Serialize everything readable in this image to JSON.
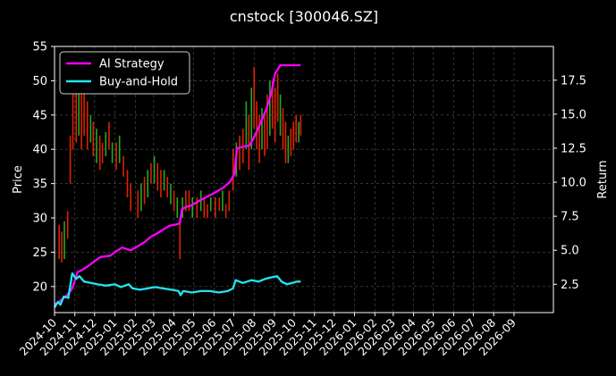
{
  "chart_data": {
    "type": "line",
    "title": "cnstock [300046.SZ]",
    "ylabel_left": "Price",
    "ylabel_right": "Return",
    "xlabel": "",
    "ylim_left": [
      16.2,
      55
    ],
    "ylim_right": [
      0.42,
      19.98
    ],
    "xlim": [
      "2024-10-01",
      "2026-10-31"
    ],
    "grid": true,
    "legend_position": "upper-left",
    "x_ticks": [
      "2024-10",
      "2024-11",
      "2024-12",
      "2025-01",
      "2025-02",
      "2025-03",
      "2025-04",
      "2025-05",
      "2025-06",
      "2025-07",
      "2025-08",
      "2025-09",
      "2025-10",
      "2025-11",
      "2025-12",
      "2026-01",
      "2026-02",
      "2026-03",
      "2026-04",
      "2026-05",
      "2026-06",
      "2026-07",
      "2026-08",
      "2026-09"
    ],
    "y_ticks_left": [
      20,
      25,
      30,
      35,
      40,
      45,
      50,
      55
    ],
    "y_ticks_right": [
      "2.5",
      "5.0",
      "7.5",
      "10.0",
      "12.5",
      "15.0",
      "17.5"
    ],
    "colors": {
      "up_candle": "#22aa22",
      "down_candle": "#dd2200",
      "ai_strategy": "#ff00ff",
      "buy_hold": "#22e5f0",
      "grid": "#555555",
      "background": "#000000"
    },
    "candles": [
      {
        "date": "2024-10-08",
        "low": 24,
        "high": 29,
        "dir": "down"
      },
      {
        "date": "2024-10-12",
        "low": 23.5,
        "high": 28,
        "dir": "down"
      },
      {
        "date": "2024-10-16",
        "low": 24,
        "high": 29.5,
        "dir": "up"
      },
      {
        "date": "2024-10-21",
        "low": 27,
        "high": 31,
        "dir": "down"
      },
      {
        "date": "2024-10-25",
        "low": 35,
        "high": 42,
        "dir": "down"
      },
      {
        "date": "2024-10-29",
        "low": 40,
        "high": 50,
        "dir": "down"
      },
      {
        "date": "2024-11-03",
        "low": 41,
        "high": 51,
        "dir": "down"
      },
      {
        "date": "2024-11-07",
        "low": 42,
        "high": 50,
        "dir": "up"
      },
      {
        "date": "2024-11-11",
        "low": 40,
        "high": 48,
        "dir": "down"
      },
      {
        "date": "2024-11-15",
        "low": 42,
        "high": 49,
        "dir": "down"
      },
      {
        "date": "2024-11-20",
        "low": 40,
        "high": 47,
        "dir": "down"
      },
      {
        "date": "2024-11-25",
        "low": 41,
        "high": 45,
        "dir": "up"
      },
      {
        "date": "2024-11-29",
        "low": 39,
        "high": 44,
        "dir": "down"
      },
      {
        "date": "2024-12-04",
        "low": 38,
        "high": 43,
        "dir": "up"
      },
      {
        "date": "2024-12-09",
        "low": 37,
        "high": 42,
        "dir": "down"
      },
      {
        "date": "2024-12-13",
        "low": 38,
        "high": 41,
        "dir": "down"
      },
      {
        "date": "2024-12-18",
        "low": 39,
        "high": 42.5,
        "dir": "up"
      },
      {
        "date": "2024-12-23",
        "low": 40,
        "high": 44,
        "dir": "down"
      },
      {
        "date": "2024-12-28",
        "low": 38,
        "high": 41,
        "dir": "up"
      },
      {
        "date": "2025-01-03",
        "low": 37,
        "high": 41,
        "dir": "down"
      },
      {
        "date": "2025-01-08",
        "low": 38,
        "high": 42,
        "dir": "up"
      },
      {
        "date": "2025-01-14",
        "low": 36,
        "high": 39,
        "dir": "down"
      },
      {
        "date": "2025-01-20",
        "low": 33,
        "high": 37,
        "dir": "down"
      },
      {
        "date": "2025-01-25",
        "low": 31,
        "high": 35,
        "dir": "down"
      },
      {
        "date": "2025-02-05",
        "low": 30,
        "high": 34,
        "dir": "down"
      },
      {
        "date": "2025-02-10",
        "low": 31,
        "high": 35,
        "dir": "up"
      },
      {
        "date": "2025-02-15",
        "low": 32,
        "high": 36,
        "dir": "down"
      },
      {
        "date": "2025-02-20",
        "low": 33,
        "high": 37,
        "dir": "up"
      },
      {
        "date": "2025-02-25",
        "low": 35,
        "high": 38,
        "dir": "down"
      },
      {
        "date": "2025-03-02",
        "low": 35,
        "high": 39,
        "dir": "up"
      },
      {
        "date": "2025-03-07",
        "low": 34,
        "high": 38,
        "dir": "down"
      },
      {
        "date": "2025-03-12",
        "low": 33,
        "high": 37,
        "dir": "down"
      },
      {
        "date": "2025-03-17",
        "low": 34,
        "high": 37,
        "dir": "up"
      },
      {
        "date": "2025-03-22",
        "low": 33,
        "high": 36,
        "dir": "down"
      },
      {
        "date": "2025-03-27",
        "low": 32,
        "high": 35,
        "dir": "up"
      },
      {
        "date": "2025-04-01",
        "low": 31,
        "high": 34,
        "dir": "down"
      },
      {
        "date": "2025-04-06",
        "low": 30,
        "high": 33,
        "dir": "up"
      },
      {
        "date": "2025-04-10",
        "low": 24,
        "high": 30,
        "dir": "down"
      },
      {
        "date": "2025-04-14",
        "low": 30,
        "high": 33,
        "dir": "up"
      },
      {
        "date": "2025-04-19",
        "low": 31,
        "high": 34,
        "dir": "down"
      },
      {
        "date": "2025-04-24",
        "low": 31,
        "high": 34,
        "dir": "down"
      },
      {
        "date": "2025-04-29",
        "low": 30,
        "high": 33,
        "dir": "up"
      },
      {
        "date": "2025-05-06",
        "low": 30,
        "high": 33,
        "dir": "down"
      },
      {
        "date": "2025-05-12",
        "low": 31,
        "high": 34,
        "dir": "up"
      },
      {
        "date": "2025-05-17",
        "low": 30,
        "high": 33,
        "dir": "down"
      },
      {
        "date": "2025-05-22",
        "low": 30,
        "high": 32,
        "dir": "down"
      },
      {
        "date": "2025-05-27",
        "low": 31,
        "high": 33,
        "dir": "up"
      },
      {
        "date": "2025-06-03",
        "low": 30,
        "high": 33,
        "dir": "down"
      },
      {
        "date": "2025-06-09",
        "low": 31,
        "high": 33,
        "dir": "down"
      },
      {
        "date": "2025-06-14",
        "low": 31,
        "high": 34,
        "dir": "up"
      },
      {
        "date": "2025-06-19",
        "low": 30,
        "high": 32,
        "dir": "down"
      },
      {
        "date": "2025-06-24",
        "low": 31,
        "high": 34,
        "dir": "down"
      },
      {
        "date": "2025-06-30",
        "low": 34,
        "high": 40,
        "dir": "down"
      },
      {
        "date": "2025-07-05",
        "low": 36,
        "high": 41,
        "dir": "up"
      },
      {
        "date": "2025-07-10",
        "low": 37,
        "high": 42,
        "dir": "down"
      },
      {
        "date": "2025-07-15",
        "low": 38,
        "high": 43,
        "dir": "down"
      },
      {
        "date": "2025-07-20",
        "low": 40,
        "high": 47,
        "dir": "up"
      },
      {
        "date": "2025-07-24",
        "low": 37,
        "high": 45,
        "dir": "down"
      },
      {
        "date": "2025-07-28",
        "low": 40,
        "high": 49,
        "dir": "up"
      },
      {
        "date": "2025-08-01",
        "low": 43,
        "high": 52,
        "dir": "down"
      },
      {
        "date": "2025-08-05",
        "low": 40,
        "high": 47,
        "dir": "down"
      },
      {
        "date": "2025-08-09",
        "low": 38,
        "high": 45,
        "dir": "down"
      },
      {
        "date": "2025-08-13",
        "low": 40,
        "high": 46,
        "dir": "up"
      },
      {
        "date": "2025-08-17",
        "low": 39,
        "high": 45,
        "dir": "down"
      },
      {
        "date": "2025-08-21",
        "low": 40,
        "high": 48,
        "dir": "down"
      },
      {
        "date": "2025-08-25",
        "low": 42,
        "high": 50,
        "dir": "up"
      },
      {
        "date": "2025-08-29",
        "low": 43,
        "high": 50,
        "dir": "down"
      },
      {
        "date": "2025-09-02",
        "low": 41,
        "high": 49,
        "dir": "down"
      },
      {
        "date": "2025-09-06",
        "low": 44,
        "high": 51,
        "dir": "down"
      },
      {
        "date": "2025-09-10",
        "low": 42,
        "high": 48,
        "dir": "up"
      },
      {
        "date": "2025-09-14",
        "low": 40,
        "high": 46,
        "dir": "down"
      },
      {
        "date": "2025-09-18",
        "low": 38,
        "high": 44,
        "dir": "down"
      },
      {
        "date": "2025-09-22",
        "low": 38,
        "high": 42,
        "dir": "up"
      },
      {
        "date": "2025-09-26",
        "low": 39,
        "high": 43,
        "dir": "down"
      },
      {
        "date": "2025-09-30",
        "low": 40,
        "high": 44,
        "dir": "down"
      },
      {
        "date": "2025-10-04",
        "low": 41,
        "high": 45,
        "dir": "down"
      },
      {
        "date": "2025-10-08",
        "low": 41,
        "high": 44,
        "dir": "up"
      },
      {
        "date": "2025-10-11",
        "low": 42,
        "high": 45,
        "dir": "down"
      }
    ],
    "series": [
      {
        "name": "AI Strategy",
        "color": "#ff00ff",
        "points": [
          [
            "2024-10-01",
            1.0
          ],
          [
            "2024-10-10",
            1.3
          ],
          [
            "2024-10-20",
            1.7
          ],
          [
            "2024-10-28",
            2.2
          ],
          [
            "2024-11-05",
            3.4
          ],
          [
            "2024-11-10",
            3.5
          ],
          [
            "2024-11-20",
            3.8
          ],
          [
            "2024-12-01",
            4.2
          ],
          [
            "2024-12-10",
            4.5
          ],
          [
            "2024-12-25",
            4.6
          ],
          [
            "2025-01-02",
            4.9
          ],
          [
            "2025-01-12",
            5.2
          ],
          [
            "2025-01-25",
            5.0
          ],
          [
            "2025-02-05",
            5.3
          ],
          [
            "2025-02-15",
            5.6
          ],
          [
            "2025-02-25",
            6.0
          ],
          [
            "2025-03-05",
            6.2
          ],
          [
            "2025-03-15",
            6.5
          ],
          [
            "2025-03-25",
            6.8
          ],
          [
            "2025-04-05",
            6.9
          ],
          [
            "2025-04-10",
            7.0
          ],
          [
            "2025-04-13",
            8.0
          ],
          [
            "2025-04-20",
            8.2
          ],
          [
            "2025-04-28",
            8.3
          ],
          [
            "2025-05-08",
            8.6
          ],
          [
            "2025-05-20",
            8.9
          ],
          [
            "2025-06-01",
            9.2
          ],
          [
            "2025-06-15",
            9.6
          ],
          [
            "2025-06-25",
            10.0
          ],
          [
            "2025-07-02",
            10.6
          ],
          [
            "2025-07-06",
            12.5
          ],
          [
            "2025-07-15",
            12.6
          ],
          [
            "2025-07-25",
            12.7
          ],
          [
            "2025-08-03",
            13.5
          ],
          [
            "2025-08-12",
            14.5
          ],
          [
            "2025-08-20",
            15.4
          ],
          [
            "2025-08-27",
            16.5
          ],
          [
            "2025-09-02",
            18.0
          ],
          [
            "2025-09-10",
            18.6
          ],
          [
            "2025-09-20",
            18.6
          ],
          [
            "2025-10-11",
            18.6
          ]
        ]
      },
      {
        "name": "Buy-and-Hold",
        "color": "#22e5f0",
        "points": [
          [
            "2024-10-01",
            0.8
          ],
          [
            "2024-10-06",
            1.2
          ],
          [
            "2024-10-10",
            1.0
          ],
          [
            "2024-10-15",
            1.6
          ],
          [
            "2024-10-22",
            1.5
          ],
          [
            "2024-10-28",
            3.3
          ],
          [
            "2024-11-03",
            2.9
          ],
          [
            "2024-11-08",
            3.1
          ],
          [
            "2024-11-15",
            2.7
          ],
          [
            "2024-11-25",
            2.6
          ],
          [
            "2024-12-05",
            2.5
          ],
          [
            "2024-12-18",
            2.4
          ],
          [
            "2025-01-01",
            2.5
          ],
          [
            "2025-01-10",
            2.3
          ],
          [
            "2025-01-22",
            2.5
          ],
          [
            "2025-01-28",
            2.2
          ],
          [
            "2025-02-08",
            2.1
          ],
          [
            "2025-02-20",
            2.2
          ],
          [
            "2025-03-03",
            2.3
          ],
          [
            "2025-03-15",
            2.2
          ],
          [
            "2025-03-28",
            2.1
          ],
          [
            "2025-04-08",
            2.0
          ],
          [
            "2025-04-11",
            1.7
          ],
          [
            "2025-04-15",
            2.0
          ],
          [
            "2025-04-28",
            1.9
          ],
          [
            "2025-05-12",
            2.0
          ],
          [
            "2025-05-26",
            2.0
          ],
          [
            "2025-06-08",
            1.9
          ],
          [
            "2025-06-22",
            2.0
          ],
          [
            "2025-06-30",
            2.2
          ],
          [
            "2025-07-04",
            2.8
          ],
          [
            "2025-07-15",
            2.6
          ],
          [
            "2025-07-28",
            2.8
          ],
          [
            "2025-08-08",
            2.7
          ],
          [
            "2025-08-18",
            2.9
          ],
          [
            "2025-08-26",
            3.0
          ],
          [
            "2025-09-05",
            3.1
          ],
          [
            "2025-09-12",
            2.7
          ],
          [
            "2025-09-20",
            2.5
          ],
          [
            "2025-09-28",
            2.6
          ],
          [
            "2025-10-05",
            2.7
          ],
          [
            "2025-10-11",
            2.7
          ]
        ]
      }
    ]
  }
}
